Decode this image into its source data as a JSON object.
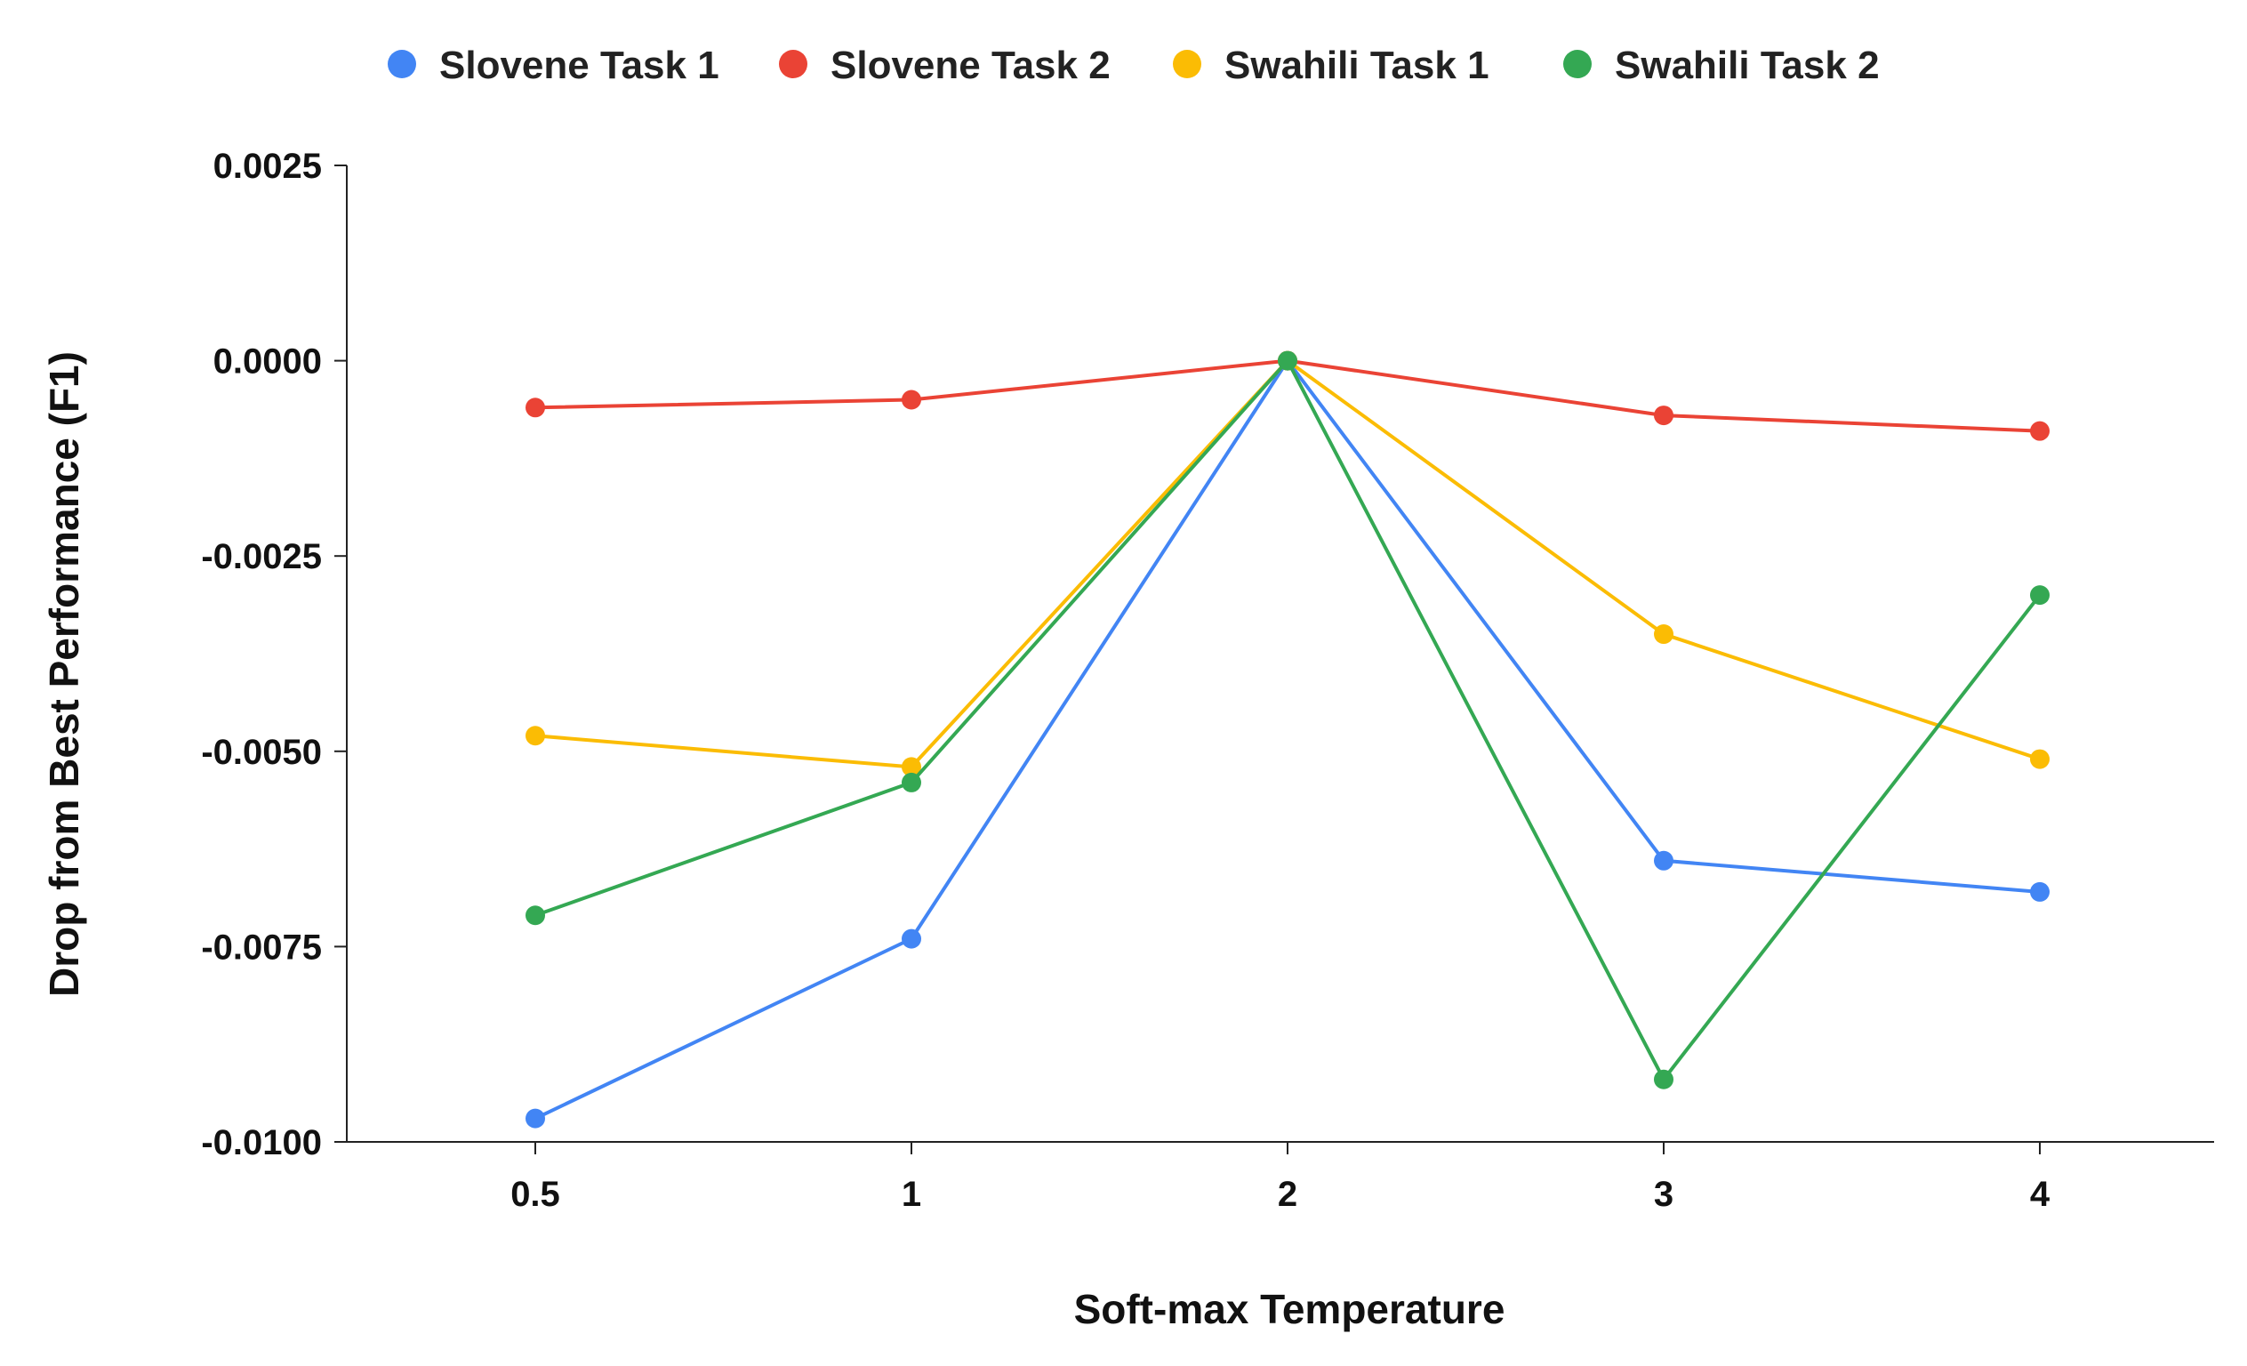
{
  "chart_data": {
    "type": "line",
    "title": "",
    "xlabel": "Soft-max Temperature",
    "ylabel": "Drop from Best Performance (F1)",
    "categories": [
      "0.5",
      "1",
      "2",
      "3",
      "4"
    ],
    "ylim": [
      -0.01,
      0.0025
    ],
    "yticks": [
      0.0025,
      0.0,
      -0.0025,
      -0.005,
      -0.0075,
      -0.01
    ],
    "ytick_labels": [
      "0.0025",
      "0.0000",
      "-0.0025",
      "-0.0050",
      "-0.0075",
      "-0.0100"
    ],
    "grid": false,
    "legend_position": "top",
    "series": [
      {
        "name": "Slovene Task 1",
        "color": "#4285F4",
        "values": [
          -0.0097,
          -0.0074,
          0.0,
          -0.0064,
          -0.0068
        ]
      },
      {
        "name": "Slovene Task 2",
        "color": "#EA4335",
        "values": [
          -0.0006,
          -0.0005,
          0.0,
          -0.0007,
          -0.0009
        ]
      },
      {
        "name": "Swahili Task 1",
        "color": "#FBBC04",
        "values": [
          -0.0048,
          -0.0052,
          0.0,
          -0.0035,
          -0.0051
        ]
      },
      {
        "name": "Swahili Task 2",
        "color": "#34A853",
        "values": [
          -0.0071,
          -0.0054,
          0.0,
          -0.0092,
          -0.003
        ]
      }
    ]
  }
}
